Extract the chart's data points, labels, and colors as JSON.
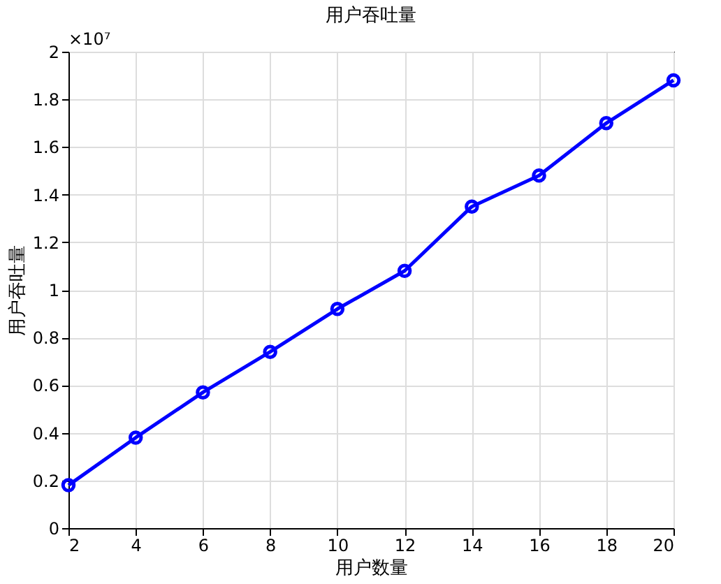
{
  "chart_data": {
    "type": "line",
    "title": "用户吞吐量",
    "xlabel": "用户数量",
    "ylabel": "用户吞吐量",
    "x": [
      2,
      4,
      6,
      8,
      10,
      12,
      14,
      16,
      18,
      20
    ],
    "series": [
      {
        "color": "#0000ff",
        "values": [
          0.18,
          0.38,
          0.57,
          0.74,
          0.92,
          1.08,
          1.35,
          1.48,
          1.7,
          1.88
        ]
      }
    ],
    "xlim": [
      2,
      20
    ],
    "xticks": [
      2,
      4,
      6,
      8,
      10,
      12,
      14,
      16,
      18,
      20
    ],
    "ylim": [
      0,
      2
    ],
    "yticks": [
      0,
      0.2,
      0.4,
      0.6,
      0.8,
      1,
      1.2,
      1.4,
      1.6,
      1.8,
      2
    ],
    "annotations": [
      "×10⁷"
    ],
    "grid": true,
    "marker": "circle",
    "line_style": "solid"
  }
}
